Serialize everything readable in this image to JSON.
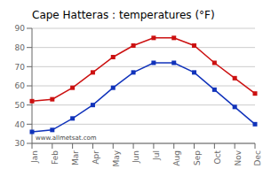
{
  "chart_data": {
    "type": "line",
    "title": "Cape Hatteras : temperatures (°F)",
    "categories": [
      "Jan",
      "Feb",
      "Mar",
      "Apr",
      "May",
      "Jun",
      "Jul",
      "Aug",
      "Sep",
      "Oct",
      "Nov",
      "Dec"
    ],
    "series": [
      {
        "color": "#cc1111",
        "marker": "square",
        "line_style": "solid",
        "values": [
          52,
          53,
          59,
          67,
          75,
          81,
          85,
          85,
          81,
          72,
          64,
          56
        ]
      },
      {
        "color": "#1133bb",
        "marker": "square",
        "line_style": "solid",
        "values": [
          36,
          37,
          43,
          50,
          59,
          67,
          72,
          72,
          67,
          58,
          49,
          40
        ]
      }
    ],
    "ylim": [
      30,
      90
    ],
    "yticks": [
      30,
      40,
      50,
      60,
      70,
      80,
      90
    ],
    "grid": true,
    "annotation": "www.allmetsat.com"
  }
}
